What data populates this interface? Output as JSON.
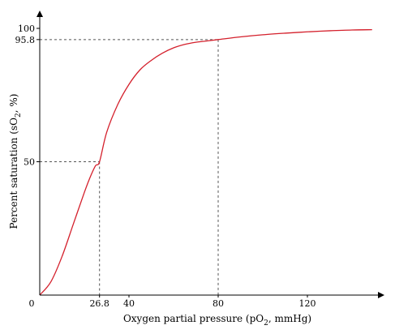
{
  "chart_data": {
    "type": "line",
    "title": "",
    "xlabel": {
      "prefix": "Oxygen partial pressure (pO",
      "sub": "2",
      "suffix": ", mmHg)"
    },
    "ylabel": {
      "prefix": "Percent saturation (sO",
      "sub": "2",
      "suffix": ", %)"
    },
    "xlim": [
      0,
      147
    ],
    "ylim": [
      0,
      100
    ],
    "x_ticks": [
      {
        "value": 0,
        "label": "0"
      },
      {
        "value": 26.8,
        "label": "26.8"
      },
      {
        "value": 40,
        "label": "40"
      },
      {
        "value": 80,
        "label": "80"
      },
      {
        "value": 120,
        "label": "120"
      }
    ],
    "y_ticks": [
      {
        "value": 50,
        "label": "50"
      },
      {
        "value": 95.8,
        "label": "95.8"
      },
      {
        "value": 100,
        "label": "100"
      }
    ],
    "series": [
      {
        "color": "#d4202c",
        "x": [
          0,
          5,
          10,
          15,
          20,
          22.5,
          25,
          26.8,
          30,
          35,
          40,
          45,
          50,
          55,
          60,
          65,
          70,
          75,
          80,
          90,
          100,
          110,
          120,
          130,
          140,
          149
        ],
        "y": [
          0,
          5,
          14.5,
          26.5,
          38.5,
          44,
          48.5,
          50,
          61,
          71.5,
          79,
          84.5,
          88,
          90.7,
          92.7,
          94,
          94.8,
          95.3,
          95.8,
          96.8,
          97.6,
          98.2,
          98.7,
          99.1,
          99.4,
          99.5
        ]
      }
    ],
    "reference_lines": [
      {
        "x": 26.8,
        "y": 50,
        "color": "#555555",
        "style": "dashed"
      },
      {
        "x": 80,
        "y": 95.8,
        "color": "#555555",
        "style": "dashed"
      }
    ],
    "grid": false,
    "legend": "none"
  }
}
